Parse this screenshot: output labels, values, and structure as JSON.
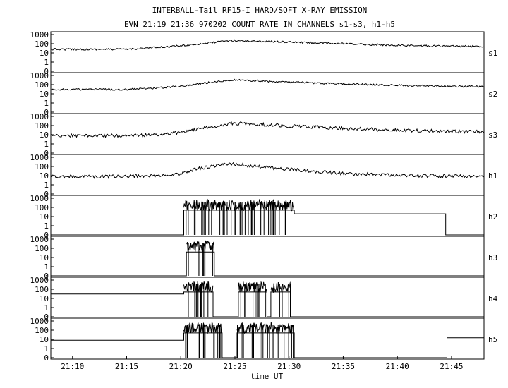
{
  "chart_data": {
    "type": "line",
    "title": "INTERBALL-Tail RF15-I HARD/SOFT X-RAY EMISSION",
    "subtitle": "EVN 21:19 21:36 970202  COUNT RATE IN CHANNELS s1-s3, h1-h5",
    "xlabel": "time UT",
    "x_range_minutes": [
      21.1333,
      21.8
    ],
    "x_ticks": [
      "21:10",
      "21:15",
      "21:20",
      "21:25",
      "21:30",
      "21:35",
      "21:40",
      "21:45"
    ],
    "x_tick_values": [
      21.1667,
      21.25,
      21.3333,
      21.4167,
      21.5,
      21.5833,
      21.6667,
      21.75
    ],
    "y_scale": "log",
    "y_ticks": [
      "1000",
      "100",
      "10",
      "1",
      "0"
    ],
    "grid": false,
    "panels": [
      {
        "name": "s1",
        "series": [
          [
            21.1333,
            25
          ],
          [
            21.25,
            25
          ],
          [
            21.3,
            40
          ],
          [
            21.333,
            60
          ],
          [
            21.38,
            130
          ],
          [
            21.41,
            220
          ],
          [
            21.43,
            210
          ],
          [
            21.5,
            150
          ],
          [
            21.6,
            90
          ],
          [
            21.7,
            60
          ],
          [
            21.8,
            50
          ]
        ]
      },
      {
        "name": "s2",
        "series": [
          [
            21.1333,
            30
          ],
          [
            21.25,
            30
          ],
          [
            21.3,
            45
          ],
          [
            21.333,
            70
          ],
          [
            21.38,
            180
          ],
          [
            21.41,
            330
          ],
          [
            21.43,
            300
          ],
          [
            21.5,
            190
          ],
          [
            21.6,
            110
          ],
          [
            21.7,
            75
          ],
          [
            21.8,
            60
          ]
        ]
      },
      {
        "name": "s3",
        "series": [
          [
            21.1333,
            8
          ],
          [
            21.25,
            8
          ],
          [
            21.3,
            10
          ],
          [
            21.333,
            18
          ],
          [
            21.38,
            70
          ],
          [
            21.41,
            180
          ],
          [
            21.43,
            170
          ],
          [
            21.5,
            90
          ],
          [
            21.6,
            45
          ],
          [
            21.7,
            28
          ],
          [
            21.8,
            20
          ]
        ]
      },
      {
        "name": "h1",
        "series": [
          [
            21.1333,
            8
          ],
          [
            21.25,
            8
          ],
          [
            21.3,
            10
          ],
          [
            21.333,
            15
          ],
          [
            21.36,
            60
          ],
          [
            21.39,
            140
          ],
          [
            21.41,
            190
          ],
          [
            21.45,
            100
          ],
          [
            21.5,
            50
          ],
          [
            21.55,
            25
          ],
          [
            21.6,
            15
          ],
          [
            21.7,
            10
          ],
          [
            21.8,
            8
          ]
        ]
      },
      {
        "name": "h2",
        "series": [
          [
            21.1333,
            0
          ],
          [
            21.338,
            0
          ],
          [
            21.338,
            50
          ],
          [
            21.508,
            50
          ],
          [
            21.508,
            20
          ],
          [
            21.741,
            20
          ],
          [
            21.741,
            0
          ],
          [
            21.8,
            0
          ]
        ],
        "noisy_ranges": [
          [
            21.338,
            21.508
          ]
        ]
      },
      {
        "name": "h3",
        "series": [
          [
            21.1333,
            0
          ],
          [
            21.342,
            0
          ],
          [
            21.342,
            40
          ],
          [
            21.385,
            40
          ],
          [
            21.385,
            0
          ],
          [
            21.8,
            0
          ]
        ],
        "noisy_ranges": [
          [
            21.342,
            21.385
          ]
        ]
      },
      {
        "name": "h4",
        "series": [
          [
            21.1333,
            30
          ],
          [
            21.338,
            30
          ],
          [
            21.338,
            50
          ],
          [
            21.383,
            50
          ],
          [
            21.383,
            0
          ],
          [
            21.422,
            0
          ],
          [
            21.422,
            50
          ],
          [
            21.466,
            50
          ],
          [
            21.466,
            0
          ],
          [
            21.472,
            0
          ],
          [
            21.472,
            50
          ],
          [
            21.503,
            50
          ],
          [
            21.503,
            0
          ],
          [
            21.8,
            0
          ]
        ],
        "noisy_ranges": [
          [
            21.338,
            21.383
          ],
          [
            21.422,
            21.466
          ],
          [
            21.472,
            21.503
          ]
        ]
      },
      {
        "name": "h5",
        "series": [
          [
            21.1333,
            8
          ],
          [
            21.338,
            8
          ],
          [
            21.338,
            50
          ],
          [
            21.397,
            50
          ],
          [
            21.397,
            0
          ],
          [
            21.42,
            0
          ],
          [
            21.42,
            50
          ],
          [
            21.508,
            50
          ],
          [
            21.508,
            0
          ],
          [
            21.743,
            0
          ],
          [
            21.743,
            15
          ],
          [
            21.8,
            15
          ]
        ],
        "noisy_ranges": [
          [
            21.338,
            21.397
          ],
          [
            21.42,
            21.508
          ]
        ]
      }
    ]
  }
}
